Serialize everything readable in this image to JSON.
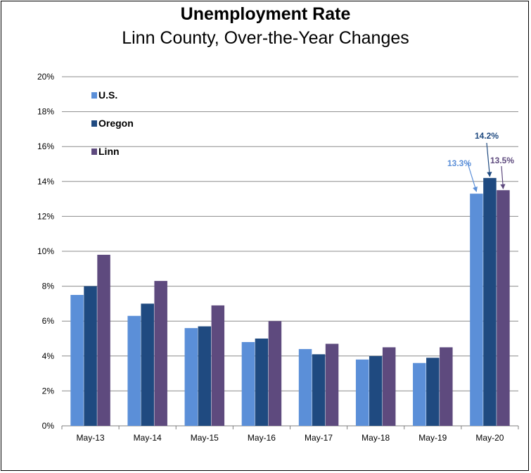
{
  "chart_data": {
    "type": "bar",
    "title": "Unemployment Rate",
    "subtitle": "Linn County, Over-the-Year Changes",
    "categories": [
      "May-13",
      "May-14",
      "May-15",
      "May-16",
      "May-17",
      "May-18",
      "May-19",
      "May-20"
    ],
    "series": [
      {
        "name": "U.S.",
        "color": "#5b8fd8",
        "values": [
          7.5,
          6.3,
          5.6,
          4.8,
          4.4,
          3.8,
          3.6,
          13.3
        ]
      },
      {
        "name": "Oregon",
        "color": "#1f4a80",
        "values": [
          8.0,
          7.0,
          5.7,
          5.0,
          4.1,
          4.0,
          3.9,
          14.2
        ]
      },
      {
        "name": "Linn",
        "color": "#5e4a7e",
        "values": [
          9.8,
          8.3,
          6.9,
          6.0,
          4.7,
          4.5,
          4.5,
          13.5
        ]
      }
    ],
    "ylim": [
      0,
      20
    ],
    "yticks": [
      "0%",
      "2%",
      "4%",
      "6%",
      "8%",
      "10%",
      "12%",
      "14%",
      "16%",
      "18%",
      "20%"
    ],
    "grid": true,
    "legend": "top-left",
    "annotations": [
      {
        "series": "U.S.",
        "category": "May-20",
        "text": "13.3%"
      },
      {
        "series": "Oregon",
        "category": "May-20",
        "text": "14.2%"
      },
      {
        "series": "Linn",
        "category": "May-20",
        "text": "13.5%"
      }
    ]
  }
}
